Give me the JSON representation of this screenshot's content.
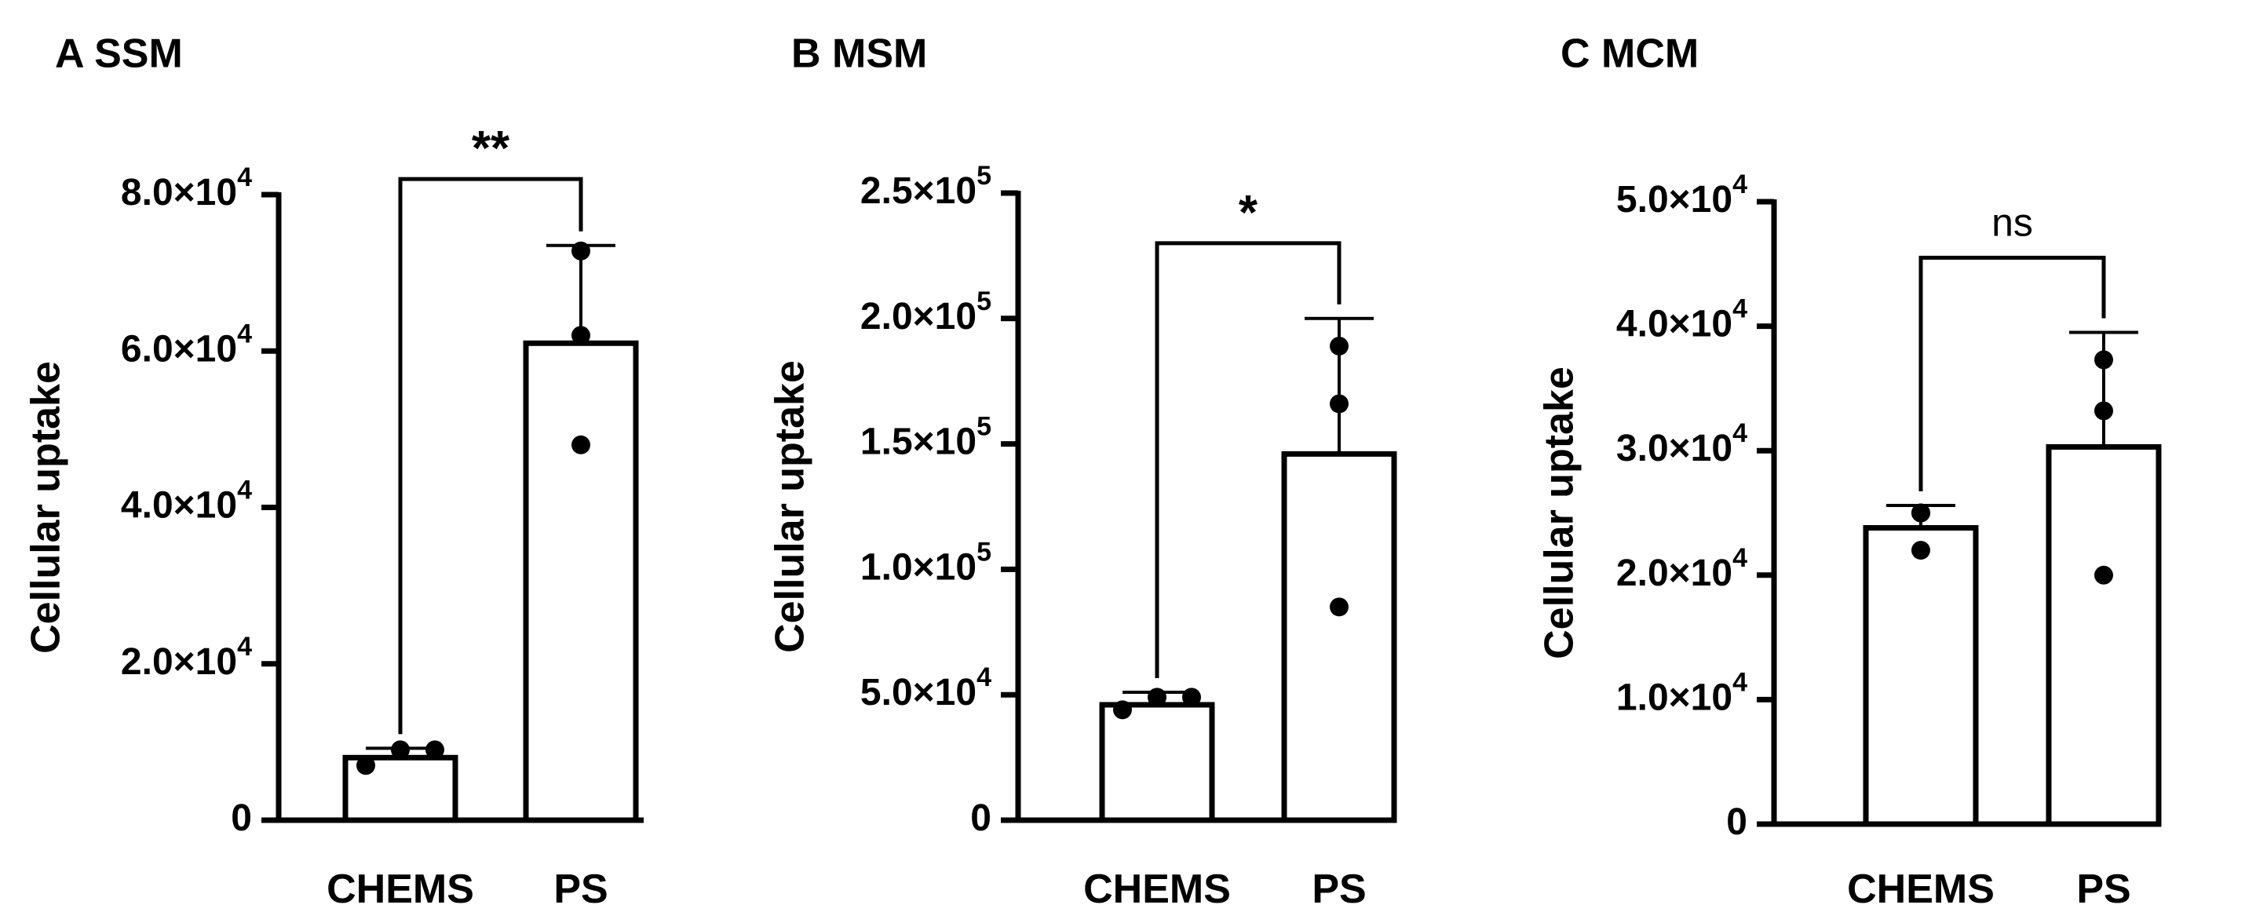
{
  "chart_data": [
    {
      "type": "bar",
      "panel_label": "A SSM",
      "categories": [
        "CHEMS",
        "PS"
      ],
      "values": [
        8000,
        61000
      ],
      "error_upper": [
        9200,
        73500
      ],
      "points": [
        [
          7000,
          9000,
          9000
        ],
        [
          48000,
          62000,
          72800
        ]
      ],
      "ylabel": "Cellular uptake",
      "ylim": [
        0,
        80000
      ],
      "yticks": [
        {
          "value": 0,
          "mantissa": "0",
          "exponent": ""
        },
        {
          "value": 20000,
          "mantissa": "2.0×10",
          "exponent": "4"
        },
        {
          "value": 40000,
          "mantissa": "4.0×10",
          "exponent": "4"
        },
        {
          "value": 60000,
          "mantissa": "6.0×10",
          "exponent": "4"
        },
        {
          "value": 80000,
          "mantissa": "8.0×10",
          "exponent": "4"
        }
      ],
      "significance": "**",
      "significance_y": 82000,
      "significance_style": "bold"
    },
    {
      "type": "bar",
      "panel_label": "B MSM",
      "categories": [
        "CHEMS",
        "PS"
      ],
      "values": [
        46000,
        146000
      ],
      "error_upper": [
        51000,
        200000
      ],
      "points": [
        [
          44000,
          49000,
          49000
        ],
        [
          85000,
          166000,
          189000
        ]
      ],
      "ylabel": "Cellular uptake",
      "ylim": [
        0,
        250000
      ],
      "yticks": [
        {
          "value": 0,
          "mantissa": "0",
          "exponent": ""
        },
        {
          "value": 50000,
          "mantissa": "5.0×10",
          "exponent": "4"
        },
        {
          "value": 100000,
          "mantissa": "1.0×10",
          "exponent": "5"
        },
        {
          "value": 150000,
          "mantissa": "1.5×10",
          "exponent": "5"
        },
        {
          "value": 200000,
          "mantissa": "2.0×10",
          "exponent": "5"
        },
        {
          "value": 250000,
          "mantissa": "2.5×10",
          "exponent": "5"
        }
      ],
      "significance": "*",
      "significance_y": 230000,
      "significance_style": "bold"
    },
    {
      "type": "bar",
      "panel_label": "C MCM",
      "categories": [
        "CHEMS",
        "PS"
      ],
      "values": [
        23800,
        30300
      ],
      "error_upper": [
        25600,
        39500
      ],
      "points": [
        [
          22000,
          25000,
          25000
        ],
        [
          20000,
          33200,
          37300
        ]
      ],
      "ylabel": "Cellular uptake",
      "ylim": [
        0,
        50000
      ],
      "yticks": [
        {
          "value": 0,
          "mantissa": "0",
          "exponent": ""
        },
        {
          "value": 10000,
          "mantissa": "1.0×10",
          "exponent": "4"
        },
        {
          "value": 20000,
          "mantissa": "2.0×10",
          "exponent": "4"
        },
        {
          "value": 30000,
          "mantissa": "3.0×10",
          "exponent": "4"
        },
        {
          "value": 40000,
          "mantissa": "4.0×10",
          "exponent": "4"
        },
        {
          "value": 50000,
          "mantissa": "5.0×10",
          "exponent": "4"
        }
      ],
      "significance": "ns",
      "significance_y": 45500,
      "significance_style": "normal"
    }
  ]
}
